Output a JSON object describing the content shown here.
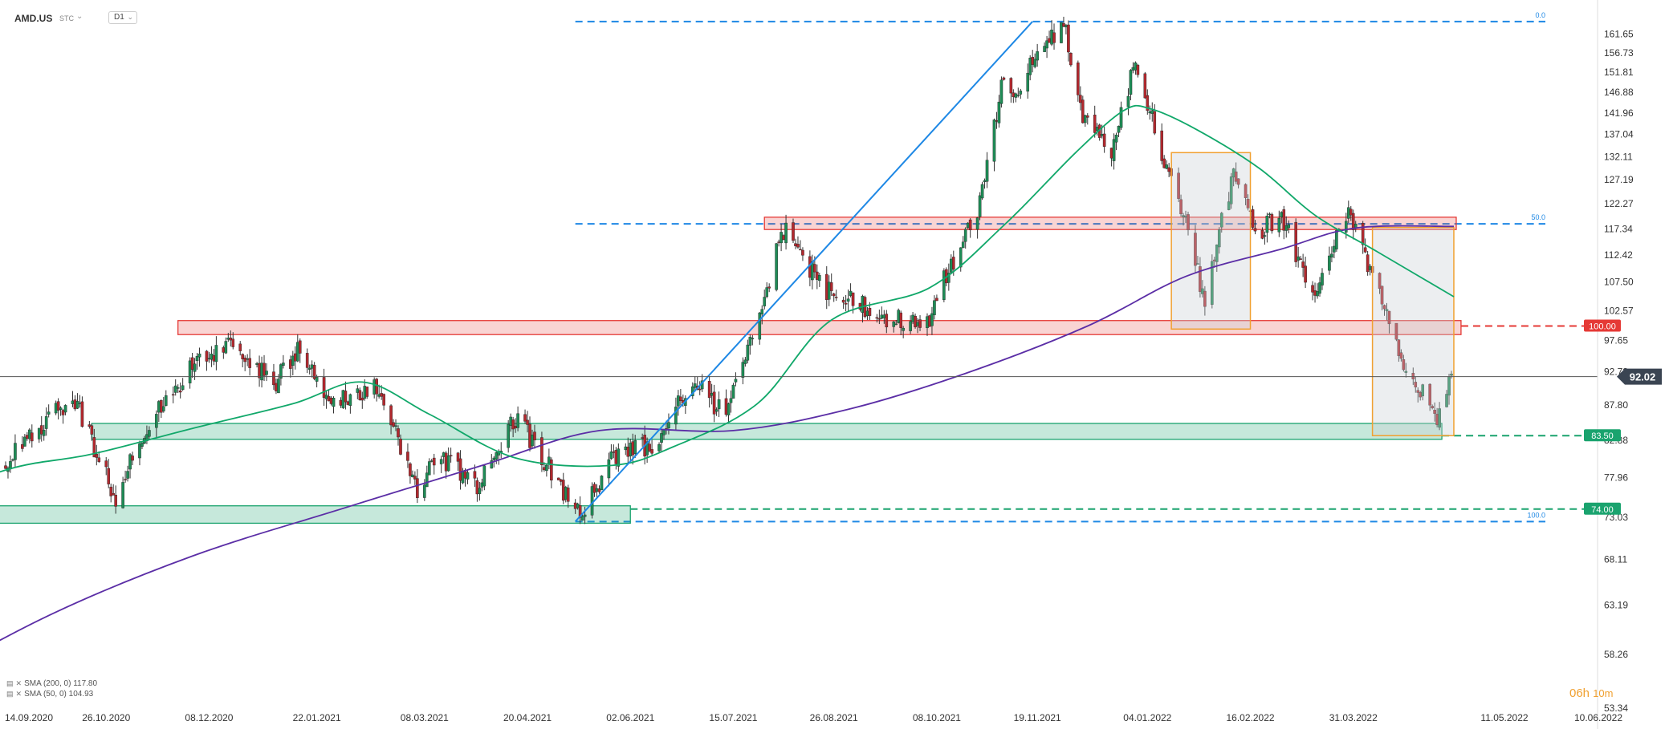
{
  "header": {
    "symbol": "AMD.US",
    "type": "STC",
    "timeframe": "D1"
  },
  "legend": [
    {
      "label": "SMA (200, 0) 117.80",
      "color": "#5b2ea6"
    },
    {
      "label": "SMA (50, 0) 104.93",
      "color": "#11a86a"
    }
  ],
  "countdown": {
    "hours": "06h",
    "minutes": "10m"
  },
  "chart_data": {
    "type": "candlestick",
    "y_axis": {
      "scale": "log",
      "ticks": [
        "161.65",
        "156.73",
        "151.81",
        "146.88",
        "141.96",
        "137.04",
        "132.11",
        "127.19",
        "122.27",
        "117.34",
        "112.42",
        "107.50",
        "102.57",
        "97.65",
        "92.73",
        "87.80",
        "82.88",
        "77.96",
        "73.03",
        "68.11",
        "63.19",
        "58.26",
        "53.34"
      ],
      "range": [
        53.34,
        166.5
      ]
    },
    "x_axis": {
      "ticks": [
        "14.09.2020",
        "26.10.2020",
        "08.12.2020",
        "22.01.2021",
        "08.03.2021",
        "20.04.2021",
        "02.06.2021",
        "15.07.2021",
        "26.08.2021",
        "08.10.2021",
        "19.11.2021",
        "04.01.2022",
        "16.02.2022",
        "31.03.2022",
        "11.05.2022",
        "10.06.2022"
      ]
    },
    "current_price": {
      "value": 92.02,
      "label": "92.02"
    },
    "levels": [
      {
        "value": 100.0,
        "label": "100.00",
        "color": "#e53935"
      },
      {
        "value": 83.5,
        "label": "83.50",
        "color": "#1aa36e"
      },
      {
        "value": 74.0,
        "label": "74.00",
        "color": "#1aa36e"
      }
    ],
    "fibonacci": [
      {
        "ratio_label": "0.0",
        "price": 165.0
      },
      {
        "ratio_label": "50.0",
        "price": 118.3
      },
      {
        "ratio_label": "100.0",
        "price": 72.5
      }
    ],
    "zones": [
      {
        "kind": "resistance",
        "x0": "2021-07-28",
        "x1": "2022-05-13",
        "y0": 117.2,
        "y1": 119.6
      },
      {
        "kind": "resistance",
        "x0": "2020-11-25",
        "x1": "2022-05-15",
        "y0": 98.6,
        "y1": 100.9
      },
      {
        "kind": "support",
        "x0": "2020-10-20",
        "x1": "2022-05-07",
        "y0": 83.0,
        "y1": 85.2
      },
      {
        "kind": "support",
        "x0": "2020-08-01",
        "x1": "2021-06-02",
        "y0": 72.3,
        "y1": 74.4
      }
    ],
    "trendline": {
      "from": [
        "2021-05-10",
        72.5
      ],
      "to": [
        "2021-11-17",
        165.0
      ]
    },
    "boxes": [
      {
        "x0": "2022-01-14",
        "x1": "2022-02-16",
        "y0": 99.5,
        "y1": 133.0
      },
      {
        "x0": "2022-04-08",
        "x1": "2022-05-12",
        "y0": 83.5,
        "y1": 117.6
      }
    ],
    "anchors": [
      [
        "2020-09-01",
        76.0
      ],
      [
        "2020-10-12",
        89.0
      ],
      [
        "2020-10-30",
        75.0
      ],
      [
        "2020-11-12",
        85.0
      ],
      [
        "2020-12-01",
        93.5
      ],
      [
        "2020-12-16",
        97.5
      ],
      [
        "2021-01-05",
        91.0
      ],
      [
        "2021-01-14",
        96.5
      ],
      [
        "2021-01-27",
        88.0
      ],
      [
        "2021-02-16",
        91.0
      ],
      [
        "2021-03-05",
        76.0
      ],
      [
        "2021-03-12",
        81.0
      ],
      [
        "2021-03-30",
        77.0
      ],
      [
        "2021-04-15",
        86.0
      ],
      [
        "2021-05-12",
        73.0
      ],
      [
        "2021-05-27",
        81.0
      ],
      [
        "2021-06-14",
        82.5
      ],
      [
        "2021-06-28",
        91.5
      ],
      [
        "2021-07-12",
        86.0
      ],
      [
        "2021-07-27",
        104.0
      ],
      [
        "2021-08-05",
        117.0
      ],
      [
        "2021-08-23",
        106.0
      ],
      [
        "2021-09-20",
        101.0
      ],
      [
        "2021-10-04",
        100.0
      ],
      [
        "2021-10-12",
        109.0
      ],
      [
        "2021-10-26",
        122.0
      ],
      [
        "2021-11-05",
        151.0
      ],
      [
        "2021-11-10",
        145.0
      ],
      [
        "2021-11-19",
        158.0
      ],
      [
        "2021-11-30",
        164.0
      ],
      [
        "2021-12-08",
        141.0
      ],
      [
        "2021-12-20",
        132.0
      ],
      [
        "2021-12-30",
        155.0
      ],
      [
        "2022-01-10",
        133.0
      ],
      [
        "2022-01-20",
        119.0
      ],
      [
        "2022-01-28",
        104.0
      ],
      [
        "2022-02-09",
        129.0
      ],
      [
        "2022-02-18",
        116.0
      ],
      [
        "2022-03-01",
        120.0
      ],
      [
        "2022-03-14",
        104.0
      ],
      [
        "2022-03-29",
        121.0
      ],
      [
        "2022-04-07",
        109.0
      ],
      [
        "2022-04-22",
        93.0
      ],
      [
        "2022-05-05",
        86.0
      ],
      [
        "2022-05-11",
        92.0
      ]
    ],
    "sma200": [
      [
        "2020-08-01",
        54.5
      ],
      [
        "2020-10-01",
        62.0
      ],
      [
        "2020-12-01",
        68.5
      ],
      [
        "2021-02-01",
        74.0
      ],
      [
        "2021-04-01",
        79.5
      ],
      [
        "2021-05-20",
        84.2
      ],
      [
        "2021-07-15",
        84.2
      ],
      [
        "2021-09-01",
        87.2
      ],
      [
        "2021-10-20",
        92.5
      ],
      [
        "2021-12-10",
        100.0
      ],
      [
        "2022-01-20",
        108.5
      ],
      [
        "2022-03-01",
        113.5
      ],
      [
        "2022-04-01",
        117.5
      ],
      [
        "2022-05-12",
        117.8
      ]
    ],
    "sma50": [
      [
        "2020-08-01",
        74.0
      ],
      [
        "2020-09-15",
        79.0
      ],
      [
        "2020-10-20",
        81.0
      ],
      [
        "2020-12-01",
        84.5
      ],
      [
        "2021-01-12",
        88.0
      ],
      [
        "2021-02-10",
        91.2
      ],
      [
        "2021-03-10",
        86.5
      ],
      [
        "2021-04-15",
        80.5
      ],
      [
        "2021-05-25",
        79.5
      ],
      [
        "2021-06-20",
        82.0
      ],
      [
        "2021-07-25",
        88.0
      ],
      [
        "2021-08-25",
        101.0
      ],
      [
        "2021-10-05",
        106.5
      ],
      [
        "2021-11-05",
        118.0
      ],
      [
        "2021-12-05",
        133.0
      ],
      [
        "2021-12-25",
        142.5
      ],
      [
        "2022-01-05",
        143.0
      ],
      [
        "2022-01-25",
        138.0
      ],
      [
        "2022-02-20",
        129.5
      ],
      [
        "2022-03-15",
        120.0
      ],
      [
        "2022-04-10",
        113.0
      ],
      [
        "2022-05-12",
        104.93
      ]
    ]
  },
  "colors": {
    "up": "#1e8c56",
    "down": "#b2282e",
    "wick": "#333333",
    "fib": "#1e88e5",
    "sma200": "#5b2ea6",
    "sma50": "#11a86a",
    "resistance": "#e53935",
    "support": "#1aa36e",
    "box": "#f0a030"
  }
}
